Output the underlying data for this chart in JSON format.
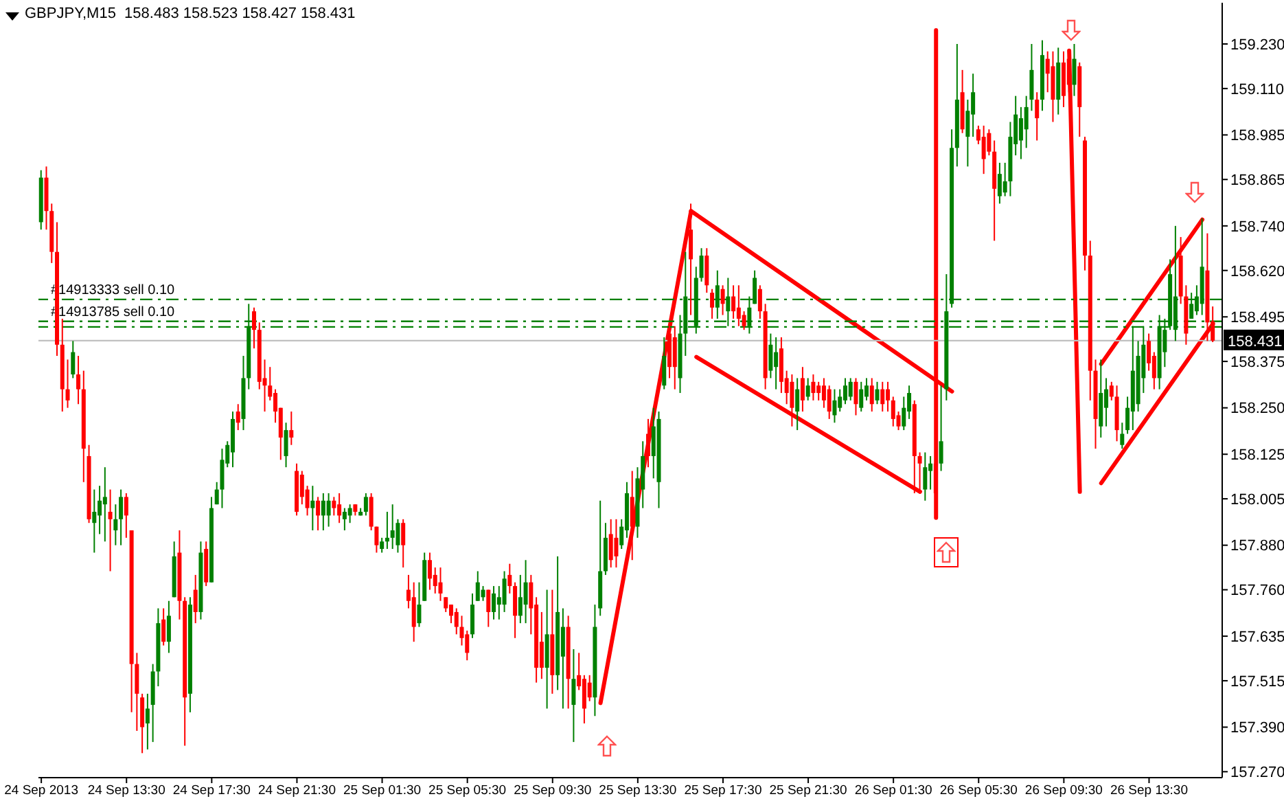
{
  "chart_data": {
    "type": "candlestick",
    "title": "GBPJPY,M15  158.483 158.523 158.427 158.431",
    "x": [
      "2013-09-24T09:30",
      "2013-09-24T09:45",
      "2013-09-24T10:00",
      "2013-09-24T10:15",
      "2013-09-24T10:30",
      "2013-09-24T10:45",
      "2013-09-24T11:00",
      "2013-09-24T11:15",
      "2013-09-24T11:30",
      "2013-09-24T11:45",
      "2013-09-24T12:00",
      "2013-09-24T12:15",
      "2013-09-24T12:30",
      "2013-09-24T12:45",
      "2013-09-24T13:00",
      "2013-09-24T13:15",
      "2013-09-24T13:30",
      "2013-09-24T13:45",
      "2013-09-24T14:00",
      "2013-09-24T14:15",
      "2013-09-24T14:30",
      "2013-09-24T14:45",
      "2013-09-24T15:00",
      "2013-09-24T15:15",
      "2013-09-24T15:30",
      "2013-09-24T15:45",
      "2013-09-24T16:00",
      "2013-09-24T16:15",
      "2013-09-24T16:30",
      "2013-09-24T16:45",
      "2013-09-24T17:00",
      "2013-09-24T17:15",
      "2013-09-24T17:30",
      "2013-09-24T17:45",
      "2013-09-24T18:00",
      "2013-09-24T18:15",
      "2013-09-24T18:30",
      "2013-09-24T18:45",
      "2013-09-24T19:00",
      "2013-09-24T19:15",
      "2013-09-24T19:30",
      "2013-09-24T19:45",
      "2013-09-24T20:00",
      "2013-09-24T20:15",
      "2013-09-24T20:30",
      "2013-09-24T20:45",
      "2013-09-24T21:00",
      "2013-09-24T21:15",
      "2013-09-24T21:30",
      "2013-09-24T21:45",
      "2013-09-24T22:00",
      "2013-09-24T22:15",
      "2013-09-24T22:30",
      "2013-09-24T22:45",
      "2013-09-24T23:00",
      "2013-09-24T23:15",
      "2013-09-24T23:30",
      "2013-09-24T23:45",
      "2013-09-25T00:00",
      "2013-09-25T00:15",
      "2013-09-25T00:30",
      "2013-09-25T00:45",
      "2013-09-25T01:00",
      "2013-09-25T01:15",
      "2013-09-25T01:30",
      "2013-09-25T01:45",
      "2013-09-25T02:00",
      "2013-09-25T02:15",
      "2013-09-25T02:30",
      "2013-09-25T02:45",
      "2013-09-25T03:00",
      "2013-09-25T03:15",
      "2013-09-25T03:30",
      "2013-09-25T03:45",
      "2013-09-25T04:00",
      "2013-09-25T04:15",
      "2013-09-25T04:30",
      "2013-09-25T04:45",
      "2013-09-25T05:00",
      "2013-09-25T05:15",
      "2013-09-25T05:30",
      "2013-09-25T05:45",
      "2013-09-25T06:00",
      "2013-09-25T06:15",
      "2013-09-25T06:30",
      "2013-09-25T06:45",
      "2013-09-25T07:00",
      "2013-09-25T07:15",
      "2013-09-25T07:30",
      "2013-09-25T07:45",
      "2013-09-25T08:00",
      "2013-09-25T08:15",
      "2013-09-25T08:30",
      "2013-09-25T08:45",
      "2013-09-25T09:00",
      "2013-09-25T09:15",
      "2013-09-25T09:30",
      "2013-09-25T09:45",
      "2013-09-25T10:00",
      "2013-09-25T10:15",
      "2013-09-25T10:30",
      "2013-09-25T10:45",
      "2013-09-25T11:00",
      "2013-09-25T11:15",
      "2013-09-25T11:30",
      "2013-09-25T11:45",
      "2013-09-25T12:00",
      "2013-09-25T12:15",
      "2013-09-25T12:30",
      "2013-09-25T12:45",
      "2013-09-25T13:00",
      "2013-09-25T13:15",
      "2013-09-25T13:30",
      "2013-09-25T13:45",
      "2013-09-25T14:00",
      "2013-09-25T14:15",
      "2013-09-25T14:30",
      "2013-09-25T14:45",
      "2013-09-25T15:00",
      "2013-09-25T15:15",
      "2013-09-25T15:30",
      "2013-09-25T15:45",
      "2013-09-25T16:00",
      "2013-09-25T16:15",
      "2013-09-25T16:30",
      "2013-09-25T16:45",
      "2013-09-25T17:00",
      "2013-09-25T17:15",
      "2013-09-25T17:30",
      "2013-09-25T17:45",
      "2013-09-25T18:00",
      "2013-09-25T18:15",
      "2013-09-25T18:30",
      "2013-09-25T18:45",
      "2013-09-25T19:00",
      "2013-09-25T19:15",
      "2013-09-25T19:30",
      "2013-09-25T19:45",
      "2013-09-25T20:00",
      "2013-09-25T20:15",
      "2013-09-25T20:30",
      "2013-09-25T20:45",
      "2013-09-25T21:00",
      "2013-09-25T21:15",
      "2013-09-25T21:30",
      "2013-09-25T21:45",
      "2013-09-25T22:00",
      "2013-09-25T22:15",
      "2013-09-25T22:30",
      "2013-09-25T22:45",
      "2013-09-25T23:00",
      "2013-09-25T23:15",
      "2013-09-25T23:30",
      "2013-09-25T23:45",
      "2013-09-26T00:00",
      "2013-09-26T00:15",
      "2013-09-26T00:30",
      "2013-09-26T00:45",
      "2013-09-26T01:00",
      "2013-09-26T01:15",
      "2013-09-26T01:30",
      "2013-09-26T01:45",
      "2013-09-26T02:00",
      "2013-09-26T02:15",
      "2013-09-26T02:30",
      "2013-09-26T02:45",
      "2013-09-26T03:00",
      "2013-09-26T03:15",
      "2013-09-26T03:30",
      "2013-09-26T03:45",
      "2013-09-26T04:00",
      "2013-09-26T04:15",
      "2013-09-26T04:30",
      "2013-09-26T04:45",
      "2013-09-26T05:00",
      "2013-09-26T05:15",
      "2013-09-26T05:30",
      "2013-09-26T05:45",
      "2013-09-26T06:00",
      "2013-09-26T06:15",
      "2013-09-26T06:30",
      "2013-09-26T06:45",
      "2013-09-26T07:00",
      "2013-09-26T07:15",
      "2013-09-26T07:30",
      "2013-09-26T07:45",
      "2013-09-26T08:00",
      "2013-09-26T08:15",
      "2013-09-26T08:30",
      "2013-09-26T08:45",
      "2013-09-26T09:00",
      "2013-09-26T09:15",
      "2013-09-26T09:30",
      "2013-09-26T09:45",
      "2013-09-26T10:00",
      "2013-09-26T10:15",
      "2013-09-26T10:30",
      "2013-09-26T10:45",
      "2013-09-26T11:00",
      "2013-09-26T11:15",
      "2013-09-26T11:30",
      "2013-09-26T11:45",
      "2013-09-26T12:00",
      "2013-09-26T12:15",
      "2013-09-26T12:30",
      "2013-09-26T12:45",
      "2013-09-26T13:00",
      "2013-09-26T13:15",
      "2013-09-26T13:30",
      "2013-09-26T13:45",
      "2013-09-26T14:00",
      "2013-09-26T14:15",
      "2013-09-26T14:30",
      "2013-09-26T14:45",
      "2013-09-26T15:00",
      "2013-09-26T15:15",
      "2013-09-26T15:30",
      "2013-09-26T15:45",
      "2013-09-26T16:00",
      "2013-09-26T16:15",
      "2013-09-26T16:30"
    ],
    "ohlc": [
      [
        158.75,
        158.89,
        158.73,
        158.87
      ],
      [
        158.87,
        158.9,
        158.73,
        158.78
      ],
      [
        158.78,
        158.8,
        158.64,
        158.67
      ],
      [
        158.67,
        158.75,
        158.39,
        158.42
      ],
      [
        158.42,
        158.49,
        158.24,
        158.3
      ],
      [
        158.3,
        158.38,
        158.25,
        158.27
      ],
      [
        158.34,
        158.43,
        158.33,
        158.4
      ],
      [
        158.34,
        158.39,
        158.26,
        158.3
      ],
      [
        158.3,
        158.35,
        158.05,
        158.14
      ],
      [
        158.12,
        158.15,
        157.94,
        157.95
      ],
      [
        157.94,
        158.03,
        157.86,
        157.97
      ],
      [
        157.96,
        158.04,
        157.91,
        158.0
      ],
      [
        157.99,
        158.09,
        157.89,
        158.01
      ],
      [
        157.97,
        158.03,
        157.81,
        157.95
      ],
      [
        157.92,
        157.99,
        157.88,
        157.95
      ],
      [
        157.95,
        158.03,
        157.88,
        158.01
      ],
      [
        158.01,
        158.02,
        157.9,
        157.96
      ],
      [
        157.92,
        157.92,
        157.43,
        157.56
      ],
      [
        157.56,
        157.59,
        157.38,
        157.48
      ],
      [
        157.47,
        157.48,
        157.32,
        157.39
      ],
      [
        157.4,
        157.48,
        157.33,
        157.44
      ],
      [
        157.45,
        157.56,
        157.35,
        157.54
      ],
      [
        157.54,
        157.71,
        157.5,
        157.67
      ],
      [
        157.68,
        157.71,
        157.61,
        157.62
      ],
      [
        157.62,
        157.73,
        157.59,
        157.69
      ],
      [
        157.74,
        157.89,
        157.74,
        157.85
      ],
      [
        157.86,
        157.92,
        157.68,
        157.73
      ],
      [
        157.73,
        157.74,
        157.34,
        157.47
      ],
      [
        157.48,
        157.74,
        157.43,
        157.72
      ],
      [
        157.76,
        157.8,
        157.67,
        157.7
      ],
      [
        157.7,
        157.89,
        157.68,
        157.86
      ],
      [
        157.87,
        157.89,
        157.77,
        157.78
      ],
      [
        157.78,
        158.01,
        157.78,
        157.98
      ],
      [
        157.99,
        158.05,
        157.99,
        158.03
      ],
      [
        158.03,
        158.14,
        157.98,
        158.11
      ],
      [
        158.1,
        158.16,
        158.09,
        158.15
      ],
      [
        158.13,
        158.24,
        158.09,
        158.22
      ],
      [
        158.24,
        158.26,
        158.19,
        158.21
      ],
      [
        158.22,
        158.39,
        158.19,
        158.33
      ],
      [
        158.33,
        158.53,
        158.3,
        158.47
      ],
      [
        158.51,
        158.52,
        158.41,
        158.46
      ],
      [
        158.46,
        158.48,
        158.3,
        158.32
      ],
      [
        158.33,
        158.38,
        158.24,
        158.31
      ],
      [
        158.31,
        158.36,
        158.27,
        158.28
      ],
      [
        158.29,
        158.3,
        158.21,
        158.24
      ],
      [
        158.25,
        158.25,
        158.11,
        158.17
      ],
      [
        158.12,
        158.21,
        158.09,
        158.19
      ],
      [
        158.19,
        158.24,
        158.15,
        158.17
      ],
      [
        158.08,
        158.1,
        157.96,
        157.97
      ],
      [
        158.07,
        158.08,
        157.99,
        158.01
      ],
      [
        158.03,
        158.04,
        157.96,
        157.98
      ],
      [
        157.98,
        158.04,
        157.92,
        158.0
      ],
      [
        158.0,
        158.01,
        157.92,
        157.96
      ],
      [
        157.96,
        158.02,
        157.92,
        158.0
      ],
      [
        157.96,
        158.02,
        157.93,
        158.0
      ],
      [
        158.0,
        158.01,
        157.96,
        157.98
      ],
      [
        157.99,
        158.02,
        157.94,
        157.96
      ],
      [
        157.95,
        157.98,
        157.92,
        157.97
      ],
      [
        157.96,
        157.99,
        157.94,
        157.98
      ],
      [
        157.99,
        157.99,
        157.96,
        157.97
      ],
      [
        157.96,
        157.98,
        157.96,
        157.97
      ],
      [
        157.97,
        158.02,
        157.96,
        158.01
      ],
      [
        158.01,
        158.02,
        157.92,
        157.93
      ],
      [
        157.93,
        157.93,
        157.86,
        157.88
      ],
      [
        157.87,
        157.9,
        157.86,
        157.89
      ],
      [
        157.89,
        157.97,
        157.87,
        157.9
      ],
      [
        157.9,
        157.99,
        157.87,
        157.92
      ],
      [
        157.88,
        157.95,
        157.86,
        157.94
      ],
      [
        157.94,
        157.95,
        157.82,
        157.88
      ],
      [
        157.76,
        157.8,
        157.71,
        157.73
      ],
      [
        157.74,
        157.78,
        157.62,
        157.66
      ],
      [
        157.67,
        157.78,
        157.66,
        157.72
      ],
      [
        157.73,
        157.86,
        157.73,
        157.84
      ],
      [
        157.84,
        157.86,
        157.76,
        157.79
      ],
      [
        157.8,
        157.82,
        157.75,
        157.77
      ],
      [
        157.78,
        157.82,
        157.73,
        157.75
      ],
      [
        157.74,
        157.74,
        157.7,
        157.71
      ],
      [
        157.72,
        157.72,
        157.67,
        157.69
      ],
      [
        157.7,
        157.71,
        157.64,
        157.66
      ],
      [
        157.66,
        157.69,
        157.61,
        157.63
      ],
      [
        157.64,
        157.65,
        157.57,
        157.59
      ],
      [
        157.64,
        157.75,
        157.63,
        157.72
      ],
      [
        157.73,
        157.81,
        157.73,
        157.78
      ],
      [
        157.74,
        157.77,
        157.73,
        157.76
      ],
      [
        157.76,
        157.76,
        157.66,
        157.7
      ],
      [
        157.7,
        157.77,
        157.68,
        157.75
      ],
      [
        157.72,
        157.77,
        157.68,
        157.74
      ],
      [
        157.72,
        157.81,
        157.7,
        157.79
      ],
      [
        157.8,
        157.83,
        157.75,
        157.77
      ],
      [
        157.77,
        157.78,
        157.63,
        157.69
      ],
      [
        157.69,
        157.8,
        157.67,
        157.74
      ],
      [
        157.72,
        157.84,
        157.67,
        157.78
      ],
      [
        157.78,
        157.8,
        157.64,
        157.71
      ],
      [
        157.72,
        157.74,
        157.51,
        157.55
      ],
      [
        157.62,
        157.7,
        157.52,
        157.55
      ],
      [
        157.55,
        157.76,
        157.44,
        157.64
      ],
      [
        157.64,
        157.76,
        157.48,
        157.53
      ],
      [
        157.53,
        157.85,
        157.49,
        157.7
      ],
      [
        157.58,
        157.71,
        157.44,
        157.66
      ],
      [
        157.66,
        157.69,
        157.44,
        157.52
      ],
      [
        157.45,
        157.6,
        157.35,
        157.52
      ],
      [
        157.53,
        157.59,
        157.49,
        157.5
      ],
      [
        157.52,
        157.53,
        157.4,
        157.44
      ],
      [
        157.51,
        157.53,
        157.46,
        157.47
      ],
      [
        157.47,
        157.72,
        157.42,
        157.66
      ],
      [
        157.71,
        158.0,
        157.69,
        157.81
      ],
      [
        157.81,
        157.94,
        157.8,
        157.9
      ],
      [
        157.91,
        157.95,
        157.82,
        157.84
      ],
      [
        157.9,
        157.95,
        157.82,
        157.85
      ],
      [
        157.88,
        157.95,
        157.87,
        157.93
      ],
      [
        157.92,
        158.05,
        157.9,
        158.02
      ],
      [
        158.01,
        158.08,
        157.84,
        157.93
      ],
      [
        157.93,
        158.09,
        157.9,
        158.06
      ],
      [
        158.03,
        158.16,
        157.98,
        158.12
      ],
      [
        158.18,
        158.22,
        158.09,
        158.12
      ],
      [
        158.12,
        158.25,
        158.06,
        158.2
      ],
      [
        158.05,
        158.24,
        157.98,
        158.22
      ],
      [
        158.31,
        158.44,
        158.3,
        158.39
      ],
      [
        158.45,
        158.47,
        158.33,
        158.36
      ],
      [
        158.44,
        158.47,
        158.3,
        158.36
      ],
      [
        158.33,
        158.5,
        158.29,
        158.45
      ],
      [
        158.45,
        158.67,
        158.39,
        158.55
      ],
      [
        158.73,
        158.8,
        158.5,
        158.65
      ],
      [
        158.47,
        158.63,
        158.45,
        158.6
      ],
      [
        158.6,
        158.68,
        158.59,
        158.66
      ],
      [
        158.66,
        158.68,
        158.56,
        158.58
      ],
      [
        158.56,
        158.57,
        158.49,
        158.52
      ],
      [
        158.52,
        158.62,
        158.49,
        158.58
      ],
      [
        158.57,
        158.58,
        158.5,
        158.53
      ],
      [
        158.51,
        158.6,
        158.47,
        158.55
      ],
      [
        158.55,
        158.58,
        158.49,
        158.51
      ],
      [
        158.52,
        158.58,
        158.47,
        158.49
      ],
      [
        158.5,
        158.51,
        158.46,
        158.47
      ],
      [
        158.47,
        158.55,
        158.45,
        158.52
      ],
      [
        158.53,
        158.62,
        158.53,
        158.6
      ],
      [
        158.57,
        158.58,
        158.49,
        158.51
      ],
      [
        158.51,
        158.53,
        158.3,
        158.33
      ],
      [
        158.35,
        158.45,
        158.33,
        158.42
      ],
      [
        158.36,
        158.44,
        158.3,
        158.4
      ],
      [
        158.41,
        158.44,
        158.29,
        158.32
      ],
      [
        158.33,
        158.35,
        158.26,
        158.29
      ],
      [
        158.32,
        158.34,
        158.2,
        158.25
      ],
      [
        158.24,
        158.33,
        158.19,
        158.3
      ],
      [
        158.33,
        158.36,
        158.24,
        158.27
      ],
      [
        158.28,
        158.33,
        158.27,
        158.31
      ],
      [
        158.32,
        158.34,
        158.27,
        158.29
      ],
      [
        158.31,
        158.32,
        158.27,
        158.29
      ],
      [
        158.31,
        158.33,
        158.25,
        158.27
      ],
      [
        158.3,
        158.31,
        158.22,
        158.24
      ],
      [
        158.23,
        158.3,
        158.21,
        158.27
      ],
      [
        158.25,
        158.3,
        158.24,
        158.28
      ],
      [
        158.27,
        158.33,
        158.26,
        158.31
      ],
      [
        158.28,
        158.33,
        158.27,
        158.32
      ],
      [
        158.32,
        158.33,
        158.23,
        158.26
      ],
      [
        158.25,
        158.32,
        158.24,
        158.3
      ],
      [
        158.28,
        158.33,
        158.27,
        158.31
      ],
      [
        158.31,
        158.33,
        158.24,
        158.26
      ],
      [
        158.27,
        158.32,
        158.26,
        158.3
      ],
      [
        158.3,
        158.32,
        158.24,
        158.26
      ],
      [
        158.3,
        158.32,
        158.24,
        158.27
      ],
      [
        158.27,
        158.28,
        158.2,
        158.22
      ],
      [
        158.23,
        158.24,
        158.19,
        158.2
      ],
      [
        158.2,
        158.28,
        158.19,
        158.25
      ],
      [
        158.24,
        158.31,
        158.22,
        158.29
      ],
      [
        158.26,
        158.27,
        158.02,
        158.12
      ],
      [
        158.12,
        158.13,
        158.02,
        158.1
      ],
      [
        158.03,
        158.13,
        158.0,
        158.09
      ],
      [
        158.08,
        158.12,
        158.03,
        158.1
      ],
      [
        158.1,
        158.12,
        157.96,
        158.02
      ],
      [
        158.1,
        158.31,
        158.08,
        158.16
      ],
      [
        158.3,
        158.61,
        158.27,
        158.51
      ],
      [
        158.53,
        159.0,
        158.52,
        158.95
      ],
      [
        158.95,
        159.23,
        158.9,
        159.08
      ],
      [
        159.1,
        159.16,
        158.99,
        159.0
      ],
      [
        158.98,
        159.08,
        158.9,
        159.05
      ],
      [
        159.04,
        159.15,
        158.98,
        159.1
      ],
      [
        159.0,
        159.01,
        158.96,
        158.97
      ],
      [
        158.98,
        159.01,
        158.88,
        158.92
      ],
      [
        158.99,
        159.0,
        158.93,
        158.94
      ],
      [
        158.94,
        158.97,
        158.7,
        158.84
      ],
      [
        158.82,
        158.91,
        158.8,
        158.88
      ],
      [
        158.83,
        158.91,
        158.82,
        158.86
      ],
      [
        158.86,
        159.02,
        158.82,
        158.98
      ],
      [
        158.96,
        159.09,
        158.93,
        159.04
      ],
      [
        158.97,
        159.06,
        158.92,
        159.03
      ],
      [
        159.0,
        159.09,
        158.95,
        159.06
      ],
      [
        159.08,
        159.23,
        159.05,
        159.16
      ],
      [
        159.08,
        159.1,
        158.97,
        159.03
      ],
      [
        159.08,
        159.24,
        159.05,
        159.2
      ],
      [
        159.19,
        159.21,
        159.1,
        159.15
      ],
      [
        159.17,
        159.21,
        159.02,
        159.08
      ],
      [
        159.08,
        159.22,
        159.04,
        159.18
      ],
      [
        159.18,
        159.21,
        159.06,
        159.09
      ],
      [
        159.19,
        159.21,
        159.1,
        159.12
      ],
      [
        159.12,
        159.23,
        159.09,
        159.19
      ],
      [
        159.17,
        159.18,
        158.98,
        159.06
      ],
      [
        158.97,
        158.98,
        158.62,
        158.66
      ],
      [
        158.66,
        158.7,
        158.27,
        158.35
      ],
      [
        158.35,
        158.38,
        158.14,
        158.22
      ],
      [
        158.2,
        158.38,
        158.17,
        158.29
      ],
      [
        158.25,
        158.33,
        158.2,
        158.3
      ],
      [
        158.31,
        158.32,
        158.27,
        158.28
      ],
      [
        158.28,
        158.31,
        158.16,
        158.19
      ],
      [
        158.15,
        158.21,
        158.14,
        158.18
      ],
      [
        158.19,
        158.28,
        158.18,
        158.25
      ],
      [
        158.24,
        158.47,
        158.19,
        158.35
      ],
      [
        158.26,
        158.43,
        158.24,
        158.39
      ],
      [
        158.33,
        158.47,
        158.29,
        158.42
      ],
      [
        158.43,
        158.45,
        158.35,
        158.37
      ],
      [
        158.39,
        158.4,
        158.3,
        158.33
      ],
      [
        158.33,
        158.5,
        158.3,
        158.47
      ],
      [
        158.4,
        158.49,
        158.36,
        158.46
      ],
      [
        158.47,
        158.65,
        158.46,
        158.61
      ],
      [
        158.46,
        158.74,
        158.43,
        158.55
      ],
      [
        158.66,
        158.71,
        158.53,
        158.55
      ],
      [
        158.55,
        158.58,
        158.42,
        158.45
      ],
      [
        158.49,
        158.56,
        158.49,
        158.53
      ],
      [
        158.51,
        158.58,
        158.5,
        158.55
      ],
      [
        158.53,
        158.76,
        158.5,
        158.63
      ],
      [
        158.62,
        158.72,
        158.43,
        158.48
      ],
      [
        158.483,
        158.523,
        158.427,
        158.431
      ]
    ],
    "colors": [
      "#008000",
      "#ff0000",
      "#ff0000",
      "#ff0000",
      "#ff0000",
      "#ff0000",
      "#008000",
      "#ff0000",
      "#ff0000",
      "#ff0000",
      "#008000",
      "#008000",
      "#008000",
      "#ff0000",
      "#008000",
      "#008000",
      "#ff0000",
      "#ff0000",
      "#ff0000",
      "#ff0000",
      "#008000",
      "#008000",
      "#008000",
      "#ff0000",
      "#008000",
      "#008000",
      "#ff0000",
      "#ff0000",
      "#008000",
      "#ff0000",
      "#008000",
      "#ff0000",
      "#008000",
      "#008000",
      "#008000",
      "#008000",
      "#008000",
      "#ff0000",
      "#008000",
      "#008000",
      "#ff0000",
      "#ff0000",
      "#ff0000",
      "#ff0000",
      "#ff0000",
      "#ff0000",
      "#008000",
      "#ff0000",
      "#ff0000",
      "#ff0000",
      "#ff0000",
      "#008000",
      "#ff0000",
      "#008000",
      "#008000",
      "#ff0000",
      "#ff0000",
      "#008000",
      "#008000",
      "#ff0000",
      "#008000",
      "#008000",
      "#ff0000",
      "#ff0000",
      "#008000",
      "#008000",
      "#008000",
      "#008000",
      "#ff0000",
      "#ff0000",
      "#ff0000",
      "#008000",
      "#008000",
      "#ff0000",
      "#ff0000",
      "#ff0000",
      "#ff0000",
      "#ff0000",
      "#ff0000",
      "#ff0000",
      "#ff0000",
      "#008000",
      "#008000",
      "#008000",
      "#ff0000",
      "#008000",
      "#008000",
      "#008000",
      "#ff0000",
      "#ff0000",
      "#008000",
      "#008000",
      "#ff0000",
      "#ff0000",
      "#ff0000",
      "#008000",
      "#ff0000",
      "#008000",
      "#008000",
      "#ff0000",
      "#008000",
      "#ff0000",
      "#ff0000",
      "#ff0000",
      "#008000",
      "#008000",
      "#008000",
      "#ff0000",
      "#ff0000",
      "#008000",
      "#008000",
      "#ff0000",
      "#008000",
      "#008000",
      "#ff0000",
      "#008000",
      "#008000",
      "#008000",
      "#ff0000",
      "#ff0000",
      "#008000",
      "#008000",
      "#ff0000",
      "#008000",
      "#008000",
      "#ff0000",
      "#ff0000",
      "#008000",
      "#ff0000",
      "#008000",
      "#ff0000",
      "#ff0000",
      "#ff0000",
      "#008000",
      "#008000",
      "#ff0000",
      "#ff0000",
      "#008000",
      "#008000",
      "#ff0000",
      "#ff0000",
      "#ff0000",
      "#008000",
      "#ff0000",
      "#008000",
      "#ff0000",
      "#ff0000",
      "#ff0000",
      "#ff0000",
      "#008000",
      "#008000",
      "#008000",
      "#008000",
      "#ff0000",
      "#008000",
      "#008000",
      "#ff0000",
      "#008000",
      "#ff0000",
      "#ff0000",
      "#ff0000",
      "#ff0000",
      "#008000",
      "#008000",
      "#ff0000",
      "#ff0000",
      "#008000",
      "#008000",
      "#ff0000",
      "#008000",
      "#008000",
      "#008000",
      "#008000",
      "#ff0000",
      "#008000",
      "#008000",
      "#ff0000",
      "#ff0000",
      "#ff0000",
      "#ff0000",
      "#008000",
      "#008000",
      "#008000",
      "#008000",
      "#008000",
      "#008000",
      "#008000",
      "#ff0000",
      "#008000",
      "#ff0000",
      "#ff0000",
      "#008000",
      "#ff0000",
      "#ff0000",
      "#008000",
      "#ff0000",
      "#ff0000",
      "#ff0000",
      "#ff0000",
      "#008000",
      "#008000",
      "#ff0000",
      "#ff0000",
      "#008000",
      "#008000",
      "#008000",
      "#008000",
      "#008000",
      "#ff0000",
      "#ff0000",
      "#008000",
      "#008000",
      "#008000",
      "#008000",
      "#ff0000",
      "#ff0000",
      "#008000",
      "#008000",
      "#008000",
      "#ff0000",
      "#ff0000"
    ],
    "xlim": [
      "2013-09-24T09:22",
      "2013-09-26T16:56"
    ],
    "xticks": [
      {
        "value": "2013-09-24T09:30",
        "label": "24 Sep 2013"
      },
      {
        "value": "2013-09-24T13:30",
        "label": "24 Sep 13:30"
      },
      {
        "value": "2013-09-24T17:30",
        "label": "24 Sep 17:30"
      },
      {
        "value": "2013-09-24T21:30",
        "label": "24 Sep 21:30"
      },
      {
        "value": "2013-09-25T01:30",
        "label": "25 Sep 01:30"
      },
      {
        "value": "2013-09-25T05:30",
        "label": "25 Sep 05:30"
      },
      {
        "value": "2013-09-25T09:30",
        "label": "25 Sep 09:30"
      },
      {
        "value": "2013-09-25T13:30",
        "label": "25 Sep 13:30"
      },
      {
        "value": "2013-09-25T17:30",
        "label": "25 Sep 17:30"
      },
      {
        "value": "2013-09-25T21:30",
        "label": "25 Sep 21:30"
      },
      {
        "value": "2013-09-26T01:30",
        "label": "26 Sep 01:30"
      },
      {
        "value": "2013-09-26T05:30",
        "label": "26 Sep 05:30"
      },
      {
        "value": "2013-09-26T09:30",
        "label": "26 Sep 09:30"
      },
      {
        "value": "2013-09-26T13:30",
        "label": "26 Sep 13:30"
      }
    ],
    "ylim": [
      157.254,
      159.341
    ],
    "yticks": [
      {
        "value": 159.23,
        "label": "159.230"
      },
      {
        "value": 159.11,
        "label": "159.110"
      },
      {
        "value": 158.985,
        "label": "158.985"
      },
      {
        "value": 158.865,
        "label": "158.865"
      },
      {
        "value": 158.74,
        "label": "158.740"
      },
      {
        "value": 158.62,
        "label": "158.620"
      },
      {
        "value": 158.495,
        "label": "158.495"
      },
      {
        "value": 158.375,
        "label": "158.375"
      },
      {
        "value": 158.25,
        "label": "158.250"
      },
      {
        "value": 158.125,
        "label": "158.125"
      },
      {
        "value": 158.005,
        "label": "158.005"
      },
      {
        "value": 157.88,
        "label": "157.880"
      },
      {
        "value": 157.76,
        "label": "157.760"
      },
      {
        "value": 157.635,
        "label": "157.635"
      },
      {
        "value": 157.515,
        "label": "157.515"
      },
      {
        "value": 157.39,
        "label": "157.390"
      },
      {
        "value": 157.27,
        "label": "157.270"
      }
    ],
    "ref_lines": [
      {
        "axis": "y",
        "value": 158.542,
        "label": "#14913333 sell 0.10",
        "color": "#008000",
        "line_style": "dashed"
      },
      {
        "axis": "y",
        "value": 158.483,
        "label": "#14913785 sell 0.10",
        "color": "#008000",
        "line_style": "dashed"
      },
      {
        "axis": "y",
        "value": 158.468,
        "color": "#008000",
        "line_style": "dashed"
      },
      {
        "axis": "y",
        "value": 158.431,
        "label": "158.431",
        "color": "#c0c0c0",
        "line_style": "solid"
      }
    ],
    "series": [
      {
        "type": "line",
        "color": "#ff0000",
        "x": [
          "2013-09-25T11:45",
          "2013-09-25T16:00"
        ],
        "values": [
          157.455,
          158.78
        ]
      },
      {
        "type": "line",
        "color": "#ff0000",
        "x": [
          "2013-09-25T16:00",
          "2013-09-26T04:15"
        ],
        "values": [
          158.78,
          158.294
        ]
      },
      {
        "type": "line",
        "color": "#ff0000",
        "x": [
          "2013-09-25T16:15",
          "2013-09-26T02:45"
        ],
        "values": [
          158.387,
          158.024
        ]
      },
      {
        "type": "line",
        "color": "#ff0000",
        "x": [
          "2013-09-26T03:30",
          "2013-09-26T03:30"
        ],
        "values": [
          157.954,
          159.267
        ]
      },
      {
        "type": "line",
        "color": "#ff0000",
        "x": [
          "2013-09-26T09:45",
          "2013-09-26T10:15"
        ],
        "values": [
          159.212,
          158.024
        ]
      },
      {
        "type": "line",
        "color": "#ff0000",
        "x": [
          "2013-09-26T11:15",
          "2013-09-26T16:00"
        ],
        "values": [
          158.368,
          158.757
        ]
      },
      {
        "type": "line",
        "color": "#ff0000",
        "x": [
          "2013-09-26T11:15",
          "2013-09-26T16:30"
        ],
        "values": [
          158.047,
          158.476
        ]
      }
    ]
  }
}
